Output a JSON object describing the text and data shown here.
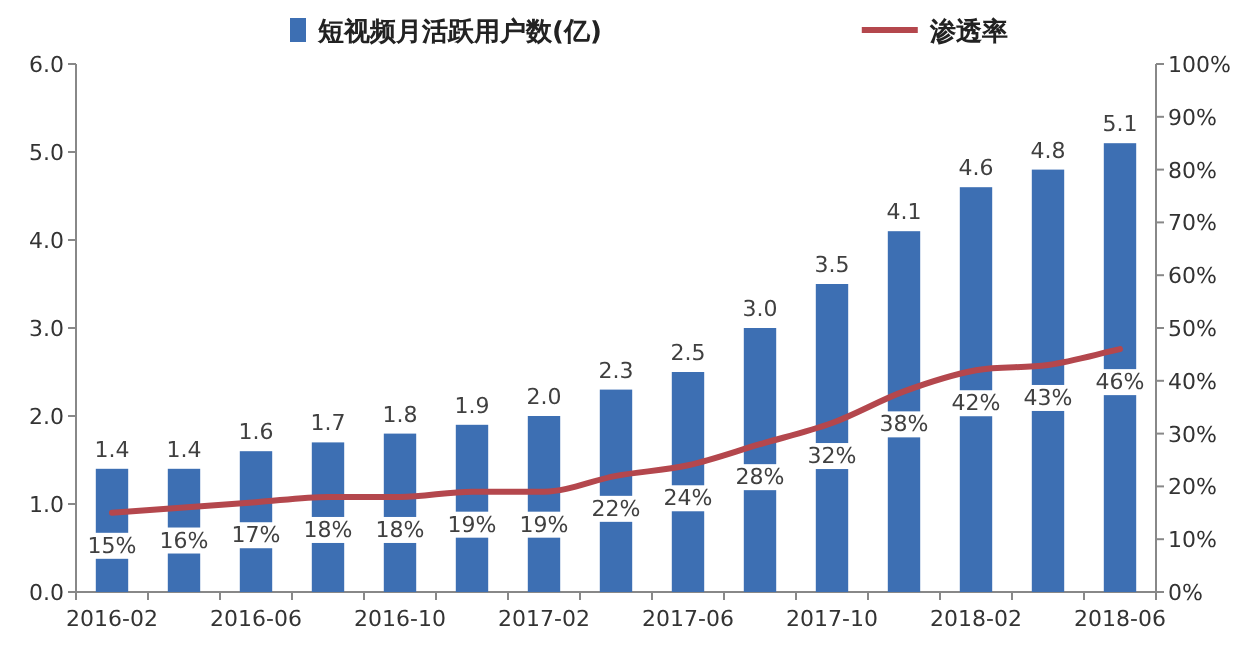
{
  "chart_data": {
    "type": "bar",
    "categories": [
      "2016-02",
      null,
      "2016-06",
      null,
      "2016-10",
      null,
      "2017-02",
      null,
      "2017-06",
      null,
      "2017-10",
      null,
      "2018-02",
      null,
      "2018-06"
    ],
    "series": [
      {
        "name": "短视频月活跃用户数(亿)",
        "color": "#3d6fb3",
        "values": [
          1.4,
          1.4,
          1.6,
          1.7,
          1.8,
          1.9,
          2.0,
          2.3,
          2.5,
          3.0,
          3.5,
          4.1,
          4.6,
          4.8,
          5.1
        ],
        "value_labels": [
          "1.4",
          "1.4",
          "1.6",
          "1.7",
          "1.8",
          "1.9",
          "2.0",
          "2.3",
          "2.5",
          "3.0",
          "3.5",
          "4.1",
          "4.6",
          "4.8",
          "5.1"
        ]
      },
      {
        "name": "渗透率",
        "type": "line",
        "axis": "y2",
        "color": "#b4474d",
        "values": [
          15,
          16,
          17,
          18,
          18,
          19,
          19,
          22,
          24,
          28,
          32,
          38,
          42,
          43,
          46
        ],
        "value_labels": [
          "15%",
          "16%",
          "17%",
          "18%",
          "18%",
          "19%",
          "19%",
          "22%",
          "24%",
          "28%",
          "32%",
          "38%",
          "42%",
          "43%",
          "46%"
        ]
      }
    ],
    "ylim": [
      0,
      6
    ],
    "yticks": [
      {
        "value": 0,
        "label": "0.0"
      },
      {
        "value": 1,
        "label": "1.0"
      },
      {
        "value": 2,
        "label": "2.0"
      },
      {
        "value": 3,
        "label": "3.0"
      },
      {
        "value": 4,
        "label": "4.0"
      },
      {
        "value": 5,
        "label": "5.0"
      },
      {
        "value": 6,
        "label": "6.0"
      }
    ],
    "y2lim": [
      0,
      100
    ],
    "y2ticks": [
      {
        "value": 0,
        "label": "0%"
      },
      {
        "value": 10,
        "label": "10%"
      },
      {
        "value": 20,
        "label": "20%"
      },
      {
        "value": 30,
        "label": "30%"
      },
      {
        "value": 40,
        "label": "40%"
      },
      {
        "value": 50,
        "label": "50%"
      },
      {
        "value": 60,
        "label": "60%"
      },
      {
        "value": 70,
        "label": "70%"
      },
      {
        "value": 80,
        "label": "80%"
      },
      {
        "value": 90,
        "label": "90%"
      },
      {
        "value": 100,
        "label": "100%"
      }
    ],
    "legend": "top"
  }
}
